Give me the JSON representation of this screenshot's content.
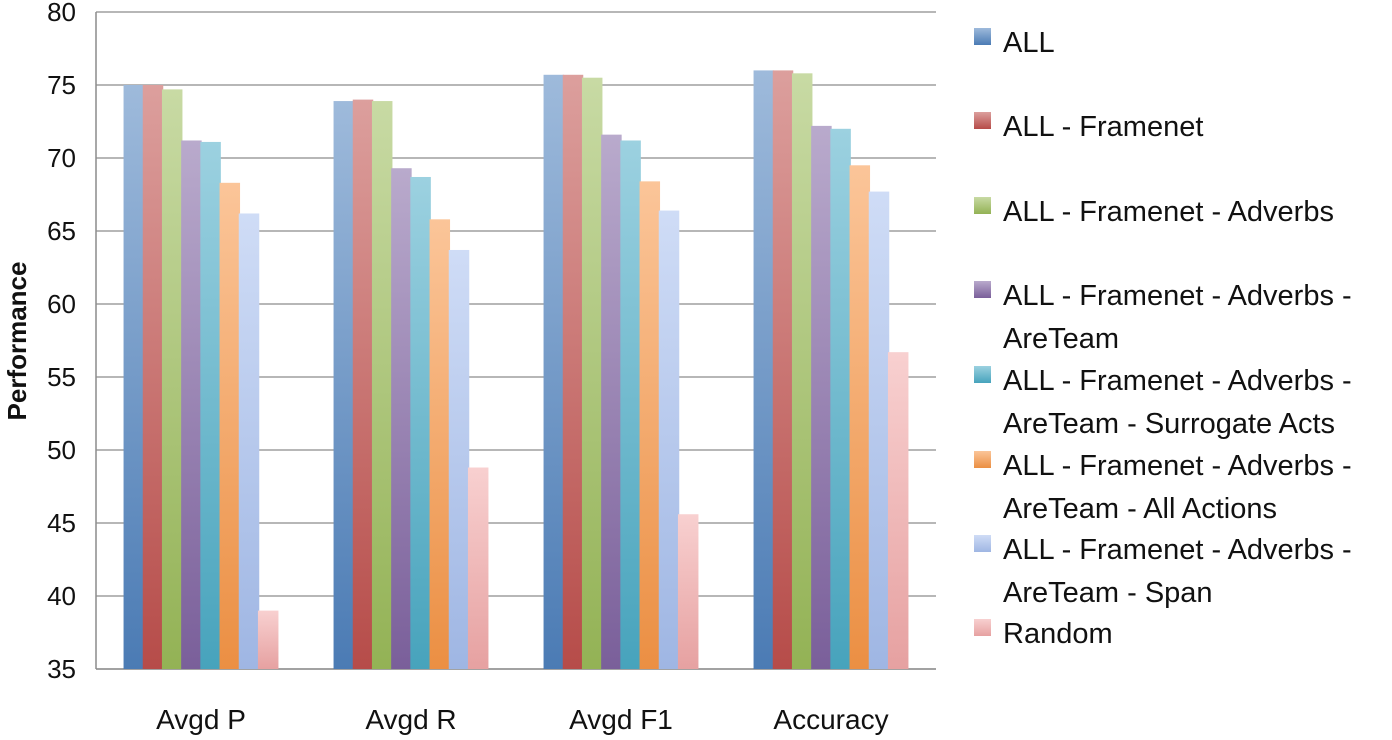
{
  "chart_data": {
    "type": "bar",
    "title": "",
    "xlabel": "",
    "ylabel": "Performance",
    "ylim": [
      35,
      80
    ],
    "yticks": [
      35,
      40,
      45,
      50,
      55,
      60,
      65,
      70,
      75,
      80
    ],
    "grid": true,
    "legend_position": "right",
    "categories": [
      "Avgd P",
      "Avgd R",
      "Avgd F1",
      "Accuracy"
    ],
    "series": [
      {
        "name": "ALL",
        "values": [
          75.0,
          73.9,
          75.7,
          76.0
        ],
        "color": "#4f81bd"
      },
      {
        "name": "ALL - Framenet",
        "values": [
          75.0,
          74.0,
          75.7,
          76.0
        ],
        "color": "#c0504d"
      },
      {
        "name": "ALL - Framenet - Adverbs",
        "values": [
          74.7,
          73.9,
          75.5,
          75.8
        ],
        "color": "#9bbb59"
      },
      {
        "name": "ALL - Framenet - Adverbs - AreTeam",
        "values": [
          71.2,
          69.3,
          71.6,
          72.2
        ],
        "color": "#8064a2"
      },
      {
        "name": "ALL - Framenet - Adverbs - AreTeam - Surrogate Acts",
        "values": [
          71.1,
          68.7,
          71.2,
          72.0
        ],
        "color": "#4bacc6"
      },
      {
        "name": "ALL - Framenet - Adverbs - AreTeam - All Actions",
        "values": [
          68.3,
          65.8,
          68.4,
          69.5
        ],
        "color": "#f79646"
      },
      {
        "name": "ALL - Framenet - Adverbs - AreTeam - Span",
        "values": [
          66.2,
          63.7,
          66.4,
          67.7
        ],
        "color": "#a7c0ef"
      },
      {
        "name": "Random",
        "values": [
          39.0,
          48.8,
          45.6,
          56.7
        ],
        "color": "#f2a9a9"
      }
    ],
    "legend_lines": [
      [
        "ALL"
      ],
      [
        "ALL - Framenet"
      ],
      [
        "ALL - Framenet - Adverbs"
      ],
      [
        "ALL - Framenet - Adverbs -",
        "AreTeam"
      ],
      [
        "ALL - Framenet - Adverbs -",
        "AreTeam - Surrogate Acts"
      ],
      [
        "ALL - Framenet - Adverbs -",
        "AreTeam - All Actions"
      ],
      [
        "ALL - Framenet - Adverbs -",
        "AreTeam - Span"
      ],
      [
        "Random"
      ]
    ]
  }
}
